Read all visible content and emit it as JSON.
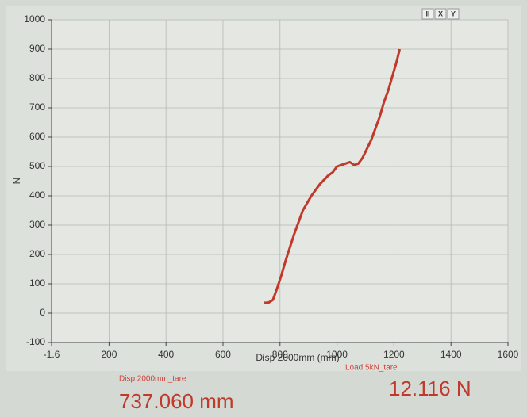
{
  "chart_data": {
    "type": "line",
    "x_label": "Disp 2000mm (mm)",
    "y_label": "N",
    "x": [
      745,
      760,
      775,
      790,
      805,
      820,
      835,
      850,
      865,
      880,
      895,
      910,
      925,
      940,
      955,
      970,
      985,
      1000,
      1015,
      1030,
      1045,
      1060,
      1075,
      1090,
      1105,
      1120,
      1135,
      1150,
      1165,
      1180,
      1195,
      1210,
      1220
    ],
    "values": [
      35,
      36,
      45,
      85,
      130,
      180,
      225,
      270,
      310,
      350,
      375,
      400,
      420,
      440,
      455,
      470,
      480,
      500,
      505,
      510,
      515,
      505,
      510,
      530,
      560,
      590,
      630,
      670,
      720,
      760,
      810,
      860,
      900
    ],
    "color": "#c0392b",
    "xlim": [
      -1.6,
      1600
    ],
    "xticks": [
      -1.6,
      200,
      400,
      600,
      800,
      1000,
      1200,
      1400,
      1600
    ],
    "ylim": [
      -100,
      1000
    ],
    "yticks": [
      -100,
      0,
      100,
      200,
      300,
      400,
      500,
      600,
      700,
      800,
      900,
      1000
    ],
    "grid": true
  },
  "toolbar": [
    "II",
    "X",
    "Y"
  ],
  "readouts": [
    {
      "label": "Disp 2000mm_tare",
      "value": "737.060 mm"
    },
    {
      "label": "Load 5kN_tare",
      "value": "12.116 N"
    }
  ]
}
